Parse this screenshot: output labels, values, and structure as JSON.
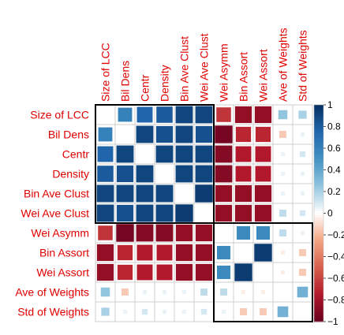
{
  "chart_data": {
    "type": "heatmap",
    "variables": [
      "Size of LCC",
      "Bil Dens",
      "Centr",
      "Density",
      "Bin Ave Clust",
      "Wei Ave Clust",
      "Wei Asymm",
      "Bin Assort",
      "Wei Assort",
      "Ave of Weights",
      "Std of Weights"
    ],
    "matrix": [
      [
        1,
        0.6,
        0.75,
        0.8,
        0.9,
        0.9,
        -0.65,
        -0.85,
        -0.85,
        0.25,
        0.2
      ],
      [
        0.6,
        1,
        0.9,
        0.85,
        0.9,
        0.85,
        -0.95,
        -0.7,
        -0.7,
        -0.15,
        0.05
      ],
      [
        0.75,
        0.9,
        1,
        0.9,
        0.9,
        0.9,
        -0.9,
        -0.75,
        -0.75,
        0.05,
        0.1
      ],
      [
        0.8,
        0.85,
        0.9,
        1,
        0.9,
        0.9,
        -0.9,
        -0.75,
        -0.75,
        0.05,
        0.05
      ],
      [
        0.9,
        0.9,
        0.9,
        0.9,
        1,
        0.95,
        -0.85,
        -0.85,
        -0.85,
        0.05,
        0.05
      ],
      [
        0.9,
        0.85,
        0.9,
        0.9,
        0.95,
        1,
        -0.85,
        -0.85,
        -0.85,
        0.15,
        0.1
      ],
      [
        -0.65,
        -0.95,
        -0.9,
        -0.9,
        -0.85,
        -0.85,
        1,
        0.55,
        0.55,
        0.15,
        0.05
      ],
      [
        -0.85,
        -0.7,
        -0.75,
        -0.75,
        -0.85,
        -0.85,
        0.55,
        1,
        0.95,
        -0.05,
        -0.15
      ],
      [
        -0.85,
        -0.7,
        -0.75,
        -0.75,
        -0.85,
        -0.85,
        0.55,
        0.95,
        1,
        -0.05,
        -0.15
      ],
      [
        0.25,
        -0.15,
        0.05,
        0.05,
        0.05,
        0.15,
        0.15,
        -0.05,
        -0.05,
        1,
        0.35
      ],
      [
        0.2,
        0.05,
        0.1,
        0.05,
        0.05,
        0.1,
        0.05,
        -0.15,
        -0.15,
        0.35,
        1
      ]
    ],
    "show_diagonal": false,
    "clusters": [
      [
        0,
        5
      ],
      [
        6,
        10
      ]
    ],
    "scale": {
      "min": -1,
      "max": 1,
      "ticks": [
        "1",
        "0.8",
        "0.6",
        "0.4",
        "0.2",
        "0",
        "−0.2",
        "−0.4",
        "−0.6",
        "−0.8",
        "−1"
      ],
      "colors": {
        "neg": "#67001f",
        "mid": "#ffffff",
        "pos": "#053061"
      }
    },
    "label_color": "#e00000",
    "legend": "right",
    "grid": true
  }
}
